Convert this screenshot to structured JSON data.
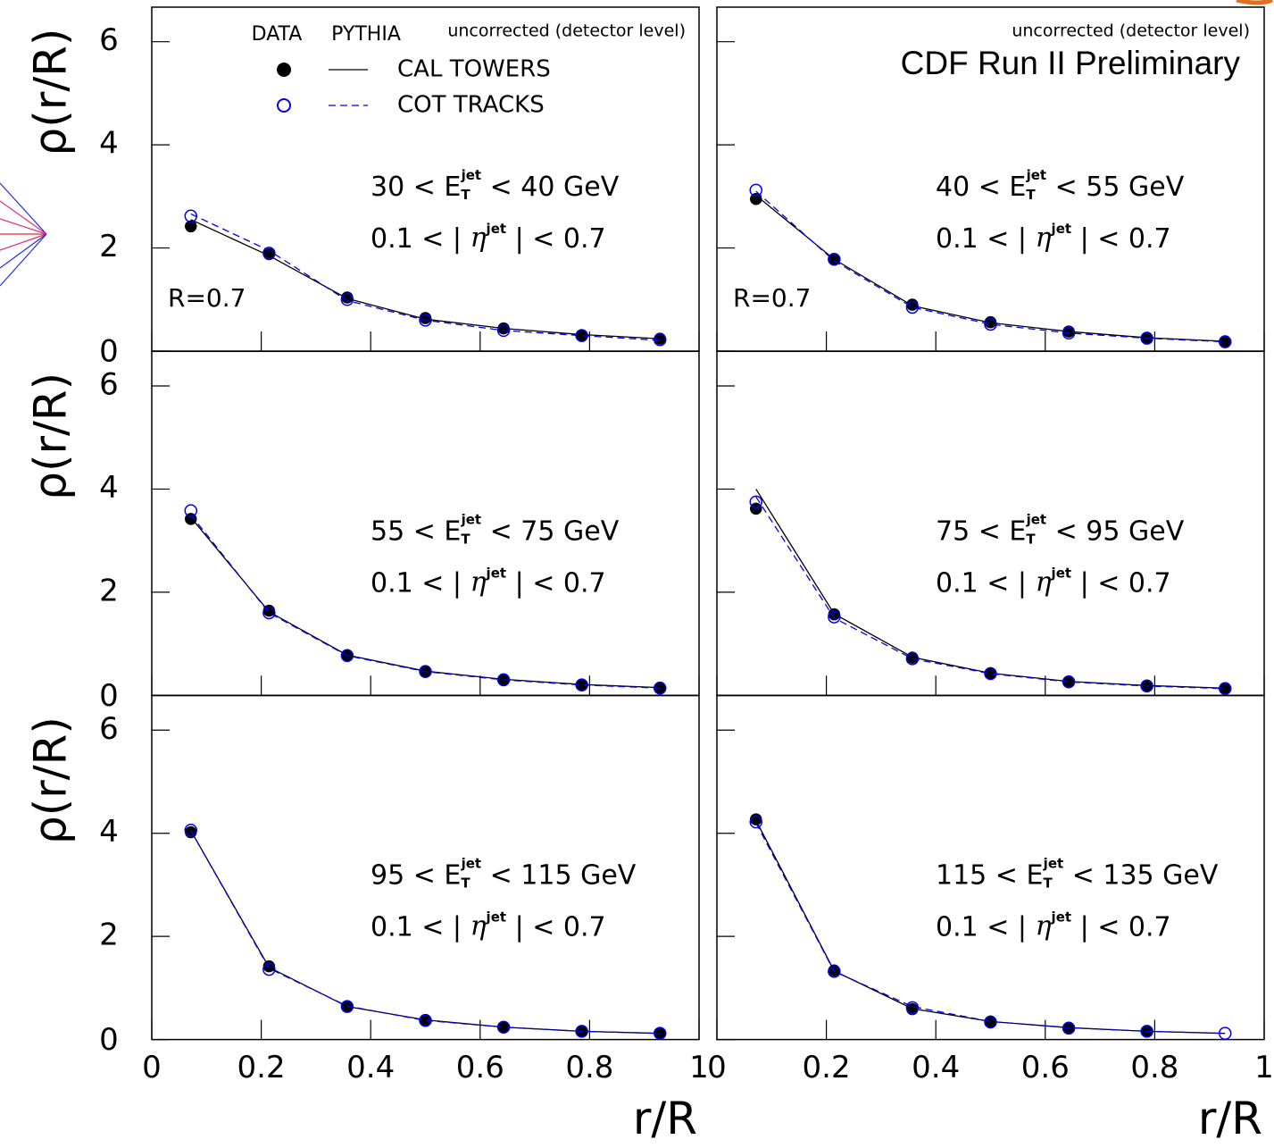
{
  "chart_data": [
    {
      "type": "line",
      "ylabel": "ρ(r/R)",
      "note": "uncorrected (detector level)",
      "r_label": "R=0.7",
      "legend_columns": [
        "DATA",
        "PYTHIA"
      ],
      "bin_label": {
        "before": "30 < E",
        "sub": "T",
        "sup": "jet",
        "after": " < 40 GeV"
      },
      "eta_label": {
        "before": "0.1 < | ",
        "symbol": "η",
        "sup": "jet",
        "after": " | < 0.7"
      },
      "x": [
        0.0714,
        0.2143,
        0.3571,
        0.5,
        0.6429,
        0.7857,
        0.9286
      ],
      "xlim": [
        0,
        1
      ],
      "ylim": [
        0,
        6.67
      ],
      "xticks": [
        0,
        0.2,
        0.4,
        0.6,
        0.8,
        1
      ],
      "yticks": [
        0,
        2,
        4,
        6
      ],
      "ytick_labels": true,
      "xtick_labels": false,
      "series": [
        {
          "name": "CAL TOWERS",
          "color": "#000000",
          "marker": "filled",
          "dashed": false,
          "values": [
            2.42,
            1.88,
            1.04,
            0.64,
            0.44,
            0.31,
            0.24
          ],
          "pythia": [
            2.55,
            1.85,
            1.02,
            0.62,
            0.44,
            0.32,
            0.24
          ]
        },
        {
          "name": "COT TRACKS",
          "color": "#0000ee",
          "marker": "open",
          "dashed": true,
          "values": [
            2.62,
            1.9,
            1.0,
            0.6,
            0.4,
            0.3,
            0.22
          ],
          "pythia": [
            2.66,
            1.95,
            0.98,
            0.6,
            0.4,
            0.3,
            0.21
          ]
        }
      ]
    },
    {
      "type": "line",
      "note": "uncorrected (detector level)",
      "title": "CDF Run II Preliminary",
      "r_label": "R=0.7",
      "bin_label": {
        "before": "40 < E",
        "sub": "T",
        "sup": "jet",
        "after": " < 55 GeV"
      },
      "eta_label": {
        "before": "0.1 < | ",
        "symbol": "η",
        "sup": "jet",
        "after": " | < 0.7"
      },
      "x": [
        0.0714,
        0.2143,
        0.3571,
        0.5,
        0.6429,
        0.7857,
        0.9286
      ],
      "xlim": [
        0,
        1
      ],
      "ylim": [
        0,
        6.67
      ],
      "xticks": [
        0,
        0.2,
        0.4,
        0.6,
        0.8,
        1
      ],
      "yticks": [
        0,
        2,
        4,
        6
      ],
      "ytick_labels": false,
      "xtick_labels": false,
      "series": [
        {
          "color": "#000000",
          "marker": "filled",
          "dashed": false,
          "values": [
            2.95,
            1.78,
            0.9,
            0.56,
            0.38,
            0.26,
            0.19
          ],
          "pythia": [
            3.02,
            1.78,
            0.88,
            0.55,
            0.38,
            0.26,
            0.19
          ]
        },
        {
          "color": "#0000ee",
          "marker": "open",
          "dashed": true,
          "values": [
            3.12,
            1.78,
            0.85,
            0.52,
            0.35,
            0.25,
            0.18
          ],
          "pythia": [
            3.1,
            1.75,
            0.85,
            0.52,
            0.35,
            0.25,
            0.18
          ]
        }
      ]
    },
    {
      "type": "line",
      "ylabel": "ρ(r/R)",
      "bin_label": {
        "before": "55 < E",
        "sub": "T",
        "sup": "jet",
        "after": " < 75 GeV"
      },
      "eta_label": {
        "before": "0.1 < | ",
        "symbol": "η",
        "sup": "jet",
        "after": " | < 0.7"
      },
      "x": [
        0.0714,
        0.2143,
        0.3571,
        0.5,
        0.6429,
        0.7857,
        0.9286
      ],
      "xlim": [
        0,
        1
      ],
      "ylim": [
        0,
        6.67
      ],
      "xticks": [
        0,
        0.2,
        0.4,
        0.6,
        0.8,
        1
      ],
      "yticks": [
        0,
        2,
        4,
        6
      ],
      "ytick_labels": true,
      "xtick_labels": false,
      "series": [
        {
          "color": "#000000",
          "marker": "filled",
          "dashed": false,
          "values": [
            3.42,
            1.64,
            0.78,
            0.47,
            0.31,
            0.21,
            0.15
          ],
          "pythia": [
            3.45,
            1.62,
            0.78,
            0.47,
            0.31,
            0.21,
            0.15
          ]
        },
        {
          "color": "#0000ee",
          "marker": "open",
          "dashed": true,
          "values": [
            3.58,
            1.6,
            0.77,
            0.46,
            0.3,
            0.2,
            0.14
          ],
          "pythia": [
            3.5,
            1.6,
            0.77,
            0.46,
            0.3,
            0.2,
            0.14
          ]
        }
      ]
    },
    {
      "type": "line",
      "bin_label": {
        "before": "75 < E",
        "sub": "T",
        "sup": "jet",
        "after": " < 95 GeV"
      },
      "eta_label": {
        "before": "0.1 < | ",
        "symbol": "η",
        "sup": "jet",
        "after": " | < 0.7"
      },
      "x": [
        0.0714,
        0.2143,
        0.3571,
        0.5,
        0.6429,
        0.7857,
        0.9286
      ],
      "xlim": [
        0,
        1
      ],
      "ylim": [
        0,
        6.67
      ],
      "xticks": [
        0,
        0.2,
        0.4,
        0.6,
        0.8,
        1
      ],
      "yticks": [
        0,
        2,
        4,
        6
      ],
      "ytick_labels": false,
      "xtick_labels": false,
      "series": [
        {
          "color": "#000000",
          "marker": "filled",
          "dashed": false,
          "values": [
            3.62,
            1.57,
            0.73,
            0.43,
            0.27,
            0.19,
            0.14
          ],
          "pythia": [
            4.0,
            1.58,
            0.74,
            0.43,
            0.27,
            0.19,
            0.14
          ]
        },
        {
          "color": "#0000ee",
          "marker": "open",
          "dashed": true,
          "values": [
            3.75,
            1.52,
            0.71,
            0.42,
            0.26,
            0.18,
            0.13
          ],
          "pythia": [
            3.85,
            1.5,
            0.71,
            0.42,
            0.26,
            0.18,
            0.13
          ]
        }
      ]
    },
    {
      "type": "line",
      "ylabel": "ρ(r/R)",
      "xlabel": "r/R",
      "bin_label": {
        "before": "95 < E",
        "sub": "T",
        "sup": "jet",
        "after": " < 115 GeV"
      },
      "eta_label": {
        "before": "0.1 < | ",
        "symbol": "η",
        "sup": "jet",
        "after": " | < 0.7"
      },
      "x": [
        0.0714,
        0.2143,
        0.3571,
        0.5,
        0.6429,
        0.7857,
        0.9286
      ],
      "xlim": [
        0,
        1
      ],
      "ylim": [
        0,
        6.67
      ],
      "xticks": [
        0,
        0.2,
        0.4,
        0.6,
        0.8,
        1
      ],
      "yticks": [
        0,
        2,
        4,
        6
      ],
      "ytick_labels": true,
      "xtick_labels": true,
      "series": [
        {
          "color": "#000000",
          "marker": "filled",
          "dashed": false,
          "values": [
            4.02,
            1.42,
            0.64,
            0.38,
            0.24,
            0.16,
            0.12
          ],
          "pythia": [
            4.05,
            1.4,
            0.64,
            0.38,
            0.24,
            0.16,
            0.12
          ]
        },
        {
          "color": "#0000ee",
          "marker": "open",
          "dashed": true,
          "values": [
            4.06,
            1.36,
            0.64,
            0.37,
            0.24,
            0.16,
            0.12
          ],
          "pythia": [
            4.05,
            1.38,
            0.65,
            0.37,
            0.24,
            0.16,
            0.12
          ]
        }
      ]
    },
    {
      "type": "line",
      "xlabel": "r/R",
      "bin_label": {
        "before": "115 < E",
        "sub": "T",
        "sup": "jet",
        "after": " < 135 GeV"
      },
      "eta_label": {
        "before": "0.1 < | ",
        "symbol": "η",
        "sup": "jet",
        "after": " | < 0.7"
      },
      "x": [
        0.0714,
        0.2143,
        0.3571,
        0.5,
        0.6429,
        0.7857,
        0.9286
      ],
      "xlim": [
        0,
        1
      ],
      "ylim": [
        0,
        6.67
      ],
      "xticks": [
        0,
        0.2,
        0.4,
        0.6,
        0.8,
        1
      ],
      "yticks": [
        0,
        2,
        4,
        6
      ],
      "ytick_labels": false,
      "xtick_labels": true,
      "series": [
        {
          "color": "#000000",
          "marker": "filled",
          "dashed": false,
          "values": [
            4.27,
            1.34,
            0.59,
            0.35,
            0.23,
            0.16,
            null
          ],
          "pythia": [
            4.25,
            1.33,
            0.6,
            0.35,
            0.23,
            0.16,
            0.12
          ]
        },
        {
          "color": "#0000ee",
          "marker": "open",
          "dashed": true,
          "values": [
            4.22,
            1.32,
            0.62,
            0.34,
            0.22,
            0.16,
            0.12
          ],
          "pythia": [
            4.2,
            1.32,
            0.64,
            0.35,
            0.23,
            0.16,
            0.12
          ]
        }
      ]
    }
  ]
}
